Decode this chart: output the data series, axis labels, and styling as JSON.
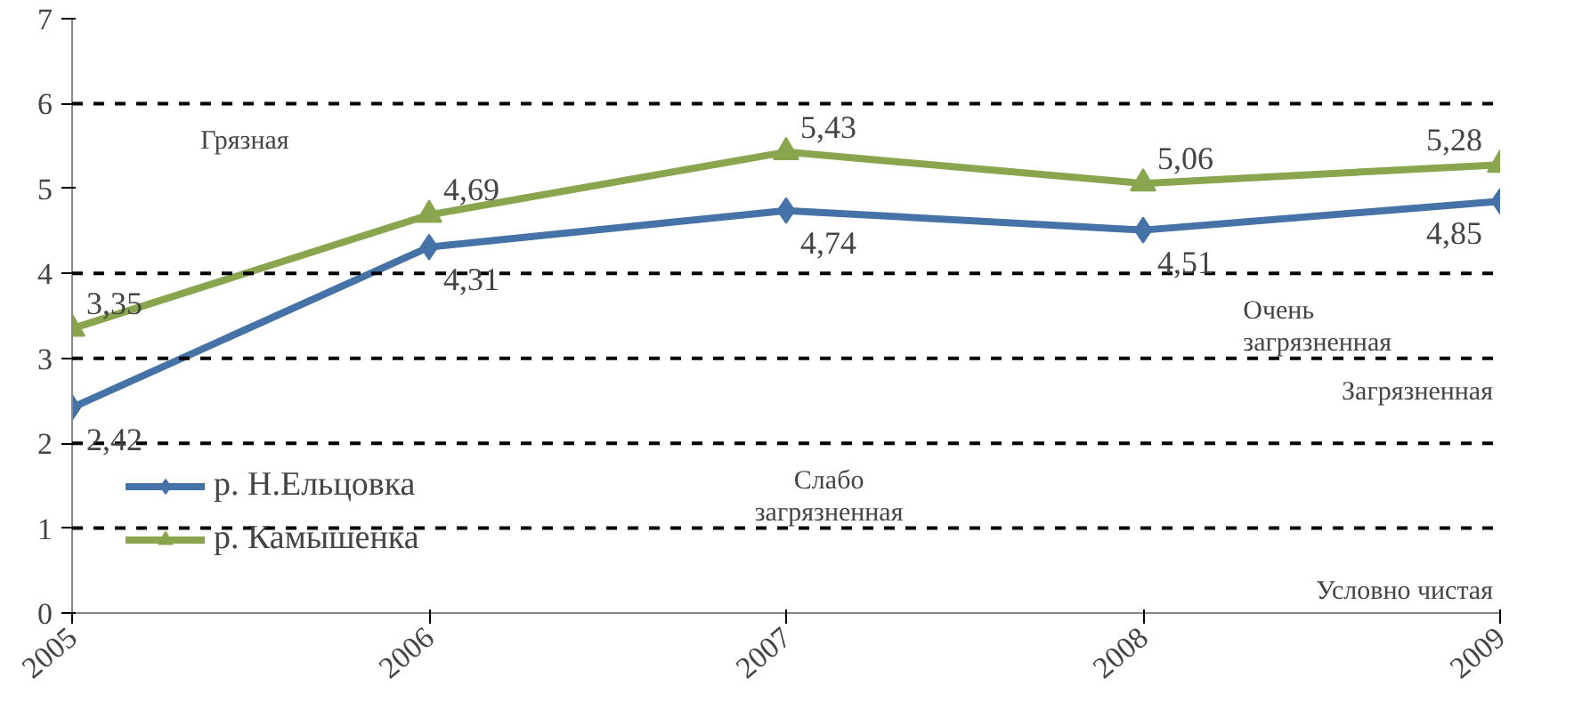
{
  "chart_data": {
    "type": "line",
    "x": [
      2005,
      2006,
      2007,
      2008,
      2009
    ],
    "series": [
      {
        "name": "р. Н.Ельцовка",
        "color": "#4572a7",
        "marker": "diamond",
        "values": [
          2.42,
          4.31,
          4.74,
          4.51,
          4.85
        ],
        "value_labels": [
          "2,42",
          "4,31",
          "4,74",
          "4,51",
          "4,85"
        ]
      },
      {
        "name": "р. Камышенка",
        "color": "#89a54e",
        "marker": "triangle",
        "values": [
          3.35,
          4.69,
          5.43,
          5.06,
          5.28
        ],
        "value_labels": [
          "3,35",
          "4,69",
          "5,43",
          "5,06",
          "5,28"
        ]
      }
    ],
    "xlim": [
      2005,
      2009
    ],
    "xticks": [
      2005,
      2006,
      2007,
      2008,
      2009
    ],
    "ylim": [
      0,
      7
    ],
    "yticks": [
      0,
      1,
      2,
      3,
      4,
      5,
      6,
      7
    ],
    "ref_lines": [
      {
        "axis": "y",
        "value": 1,
        "color": "#000000",
        "line_style": "dashed"
      },
      {
        "axis": "y",
        "value": 2,
        "color": "#000000",
        "line_style": "dashed"
      },
      {
        "axis": "y",
        "value": 3,
        "color": "#000000",
        "line_style": "dashed"
      },
      {
        "axis": "y",
        "value": 4,
        "color": "#000000",
        "line_style": "dashed"
      },
      {
        "axis": "y",
        "value": 6,
        "color": "#000000",
        "line_style": "dashed"
      }
    ],
    "annotations": [
      "Грязная",
      "Очень\nзагрязненная",
      "Загрязненная",
      "Слабо\nзагрязненная",
      "Условно чистая"
    ],
    "legend": "bottom left",
    "grid": false
  }
}
